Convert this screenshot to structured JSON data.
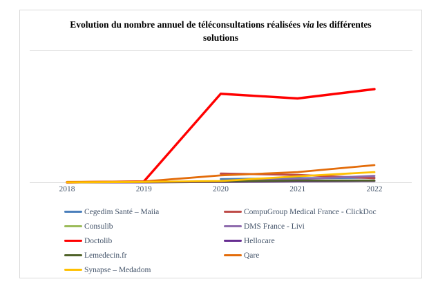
{
  "chart": {
    "title": {
      "prefix": "Evolution du nombre annuel de téléconsultations réalisées ",
      "italic": "via",
      "suffix": " les différentes solutions"
    }
  },
  "chart_data": {
    "type": "line",
    "title": "Evolution du nombre annuel de téléconsultations réalisées via les différentes solutions",
    "categories": [
      "2018",
      "2019",
      "2020",
      "2021",
      "2022"
    ],
    "xlabel": "",
    "ylabel": "",
    "y_axis_note": "no y-axis labels visible in chart; values are relative units where Doctolib 2022 = 100",
    "ylim": [
      0,
      107
    ],
    "grid": false,
    "legend_position": "bottom-left, two columns",
    "series": [
      {
        "name": "Cegedim Santé – Maiia",
        "color": "#4A7EBB",
        "stroke_width": 2.8,
        "values": [
          null,
          null,
          3.5,
          4.5,
          5
        ]
      },
      {
        "name": "CompuGroup Medical France - ClickDoc",
        "color": "#BE4B48",
        "stroke_width": 2.8,
        "values": [
          null,
          null,
          9.5,
          8,
          4.5
        ]
      },
      {
        "name": "Consulib",
        "color": "#9BBB59",
        "stroke_width": 2.8,
        "values": [
          0,
          0,
          0.5,
          1,
          1.5
        ]
      },
      {
        "name": "DMS France - Livi",
        "color": "#8E6BAD",
        "stroke_width": 2.8,
        "values": [
          0,
          0,
          1,
          3.5,
          7
        ]
      },
      {
        "name": "Doctolib",
        "color": "#FF0000",
        "stroke_width": 3.4,
        "values": [
          0,
          1,
          95,
          90,
          100
        ]
      },
      {
        "name": "Hellocare",
        "color": "#662D91",
        "stroke_width": 2.8,
        "values": [
          0,
          0,
          0.5,
          1,
          1.5
        ]
      },
      {
        "name": "Lemedecin.fr",
        "color": "#4F6228",
        "stroke_width": 2.8,
        "values": [
          0,
          0.5,
          1,
          2,
          2
        ]
      },
      {
        "name": "Qare",
        "color": "#E36C0A",
        "stroke_width": 2.8,
        "values": [
          0.5,
          1,
          7.5,
          11,
          18.5
        ]
      },
      {
        "name": "Synapse – Medadom",
        "color": "#FFC000",
        "stroke_width": 2.8,
        "values": [
          0,
          0.5,
          1.5,
          6.5,
          11
        ]
      }
    ]
  },
  "colors": {
    "box_border": "#d9d9d9",
    "axis_line": "#d9d9d9",
    "separator": "#d9d9d9",
    "label_text": "#44546A",
    "title_text": "#000000",
    "background": "#ffffff"
  }
}
